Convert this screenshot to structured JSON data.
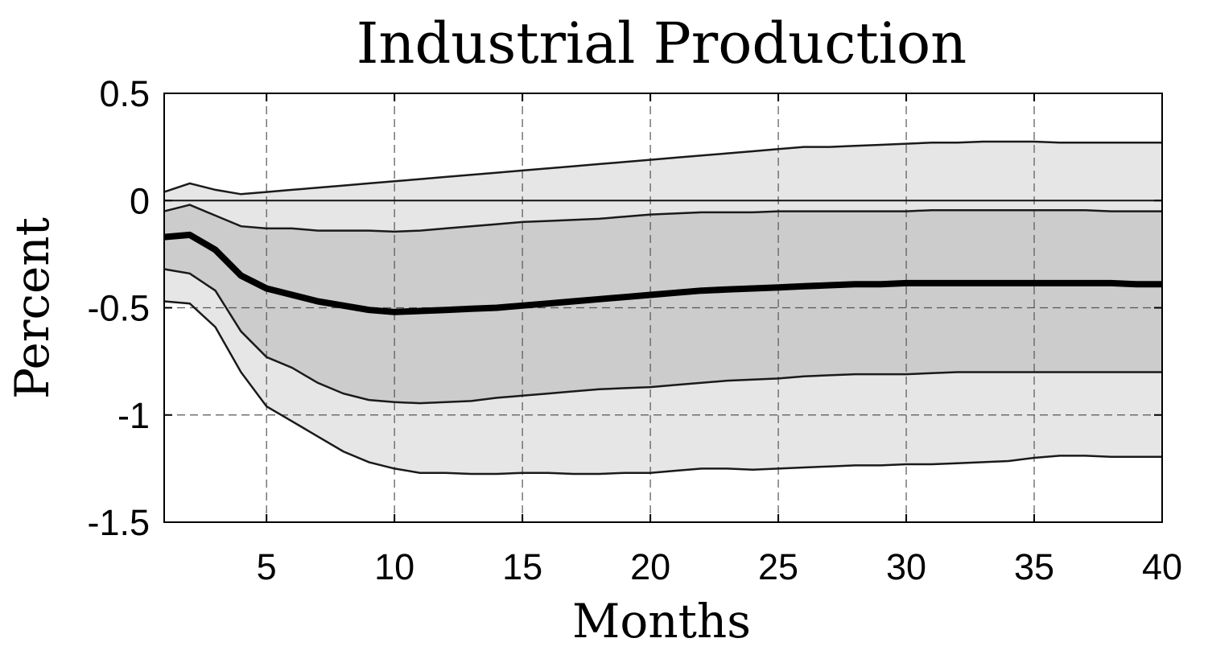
{
  "chart_data": {
    "type": "line",
    "title": "Industrial Production",
    "xlabel": "Months",
    "ylabel": "Percent",
    "xlim": [
      1,
      40
    ],
    "ylim": [
      -1.5,
      0.5
    ],
    "x_ticks": [
      5,
      10,
      15,
      20,
      25,
      30,
      35,
      40
    ],
    "y_ticks": [
      0.5,
      0,
      -0.5,
      -1,
      -1.5
    ],
    "x_tick_labels": [
      "5",
      "10",
      "15",
      "20",
      "25",
      "30",
      "35",
      "40"
    ],
    "y_tick_labels": [
      "0.5",
      "0",
      "-0.5",
      "-1",
      "-1.5"
    ],
    "grid": true,
    "zero_line": true,
    "x": [
      1,
      2,
      3,
      4,
      5,
      6,
      7,
      8,
      9,
      10,
      11,
      12,
      13,
      14,
      15,
      16,
      17,
      18,
      19,
      20,
      21,
      22,
      23,
      24,
      25,
      26,
      27,
      28,
      29,
      30,
      31,
      32,
      33,
      34,
      35,
      36,
      37,
      38,
      39,
      40
    ],
    "median": [
      -0.17,
      -0.16,
      -0.23,
      -0.35,
      -0.41,
      -0.44,
      -0.47,
      -0.49,
      -0.51,
      -0.52,
      -0.515,
      -0.51,
      -0.505,
      -0.5,
      -0.49,
      -0.48,
      -0.47,
      -0.46,
      -0.45,
      -0.44,
      -0.43,
      -0.42,
      -0.415,
      -0.41,
      -0.405,
      -0.4,
      -0.395,
      -0.39,
      -0.39,
      -0.385,
      -0.385,
      -0.385,
      -0.385,
      -0.385,
      -0.385,
      -0.385,
      -0.385,
      -0.385,
      -0.39,
      -0.39
    ],
    "inner_band": {
      "upper": [
        -0.05,
        -0.02,
        -0.07,
        -0.12,
        -0.13,
        -0.13,
        -0.14,
        -0.14,
        -0.14,
        -0.145,
        -0.14,
        -0.13,
        -0.12,
        -0.11,
        -0.1,
        -0.095,
        -0.09,
        -0.085,
        -0.075,
        -0.065,
        -0.06,
        -0.055,
        -0.055,
        -0.055,
        -0.05,
        -0.05,
        -0.05,
        -0.05,
        -0.05,
        -0.05,
        -0.045,
        -0.045,
        -0.045,
        -0.045,
        -0.045,
        -0.045,
        -0.045,
        -0.05,
        -0.05,
        -0.05
      ],
      "lower": [
        -0.32,
        -0.34,
        -0.42,
        -0.61,
        -0.73,
        -0.78,
        -0.85,
        -0.9,
        -0.93,
        -0.94,
        -0.945,
        -0.94,
        -0.935,
        -0.92,
        -0.91,
        -0.9,
        -0.89,
        -0.88,
        -0.875,
        -0.87,
        -0.86,
        -0.85,
        -0.84,
        -0.835,
        -0.83,
        -0.82,
        -0.815,
        -0.81,
        -0.81,
        -0.81,
        -0.805,
        -0.8,
        -0.8,
        -0.8,
        -0.8,
        -0.8,
        -0.8,
        -0.8,
        -0.8,
        -0.8
      ]
    },
    "outer_band": {
      "upper": [
        0.04,
        0.08,
        0.05,
        0.03,
        0.04,
        0.05,
        0.06,
        0.07,
        0.08,
        0.09,
        0.1,
        0.11,
        0.12,
        0.13,
        0.14,
        0.15,
        0.16,
        0.17,
        0.18,
        0.19,
        0.2,
        0.21,
        0.22,
        0.23,
        0.24,
        0.25,
        0.25,
        0.255,
        0.26,
        0.265,
        0.27,
        0.27,
        0.275,
        0.275,
        0.275,
        0.27,
        0.27,
        0.27,
        0.27,
        0.27
      ],
      "lower": [
        -0.47,
        -0.48,
        -0.59,
        -0.8,
        -0.96,
        -1.03,
        -1.1,
        -1.17,
        -1.22,
        -1.25,
        -1.27,
        -1.27,
        -1.275,
        -1.275,
        -1.27,
        -1.27,
        -1.275,
        -1.275,
        -1.27,
        -1.27,
        -1.26,
        -1.25,
        -1.25,
        -1.255,
        -1.25,
        -1.245,
        -1.24,
        -1.235,
        -1.235,
        -1.23,
        -1.23,
        -1.225,
        -1.22,
        -1.215,
        -1.2,
        -1.19,
        -1.19,
        -1.195,
        -1.195,
        -1.195
      ]
    },
    "colors": {
      "median_line": "#000000",
      "band_line": "#1a1a1a",
      "inner_band_fill": "#cccccc",
      "outer_band_fill": "#e6e6e6",
      "axes": "#000000",
      "grid": "#555555",
      "zero_line": "#111111"
    }
  }
}
